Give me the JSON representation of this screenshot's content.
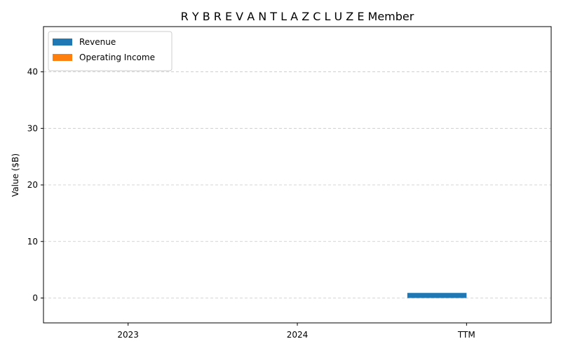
{
  "chart_data": {
    "type": "bar",
    "title": "R Y B R E V A N T L A Z C L U Z E Member",
    "xlabel": "",
    "ylabel": "Value ($B)",
    "categories": [
      "2023",
      "2024",
      "TTM"
    ],
    "series": [
      {
        "name": "Revenue",
        "color": "#1f77b4",
        "values": [
          0,
          0,
          0.9
        ]
      },
      {
        "name": "Operating Income",
        "color": "#ff7f0e",
        "values": [
          0,
          0,
          0
        ]
      }
    ],
    "ylim": [
      -4.4,
      48
    ],
    "yticks": [
      0,
      10,
      20,
      30,
      40
    ],
    "grid": true,
    "legend_position": "top-left"
  }
}
